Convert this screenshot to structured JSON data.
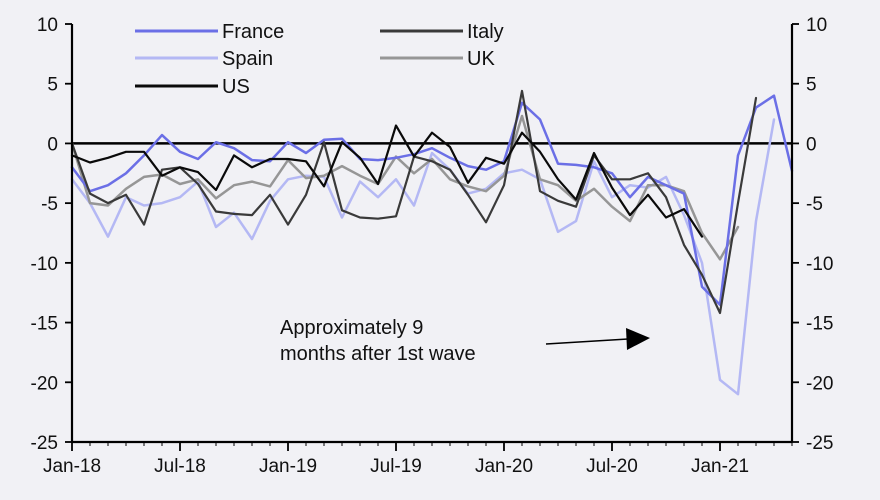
{
  "chart_data": {
    "type": "line",
    "title": "",
    "xlabel": "",
    "ylabel": "",
    "ylim": [
      -25,
      10
    ],
    "yticks": [
      10,
      5,
      0,
      -5,
      -10,
      -15,
      -20,
      -25
    ],
    "xlim": [
      "2018-01",
      "2021-05"
    ],
    "xticks": [
      "Jan-18",
      "Jul-18",
      "Jan-19",
      "Jul-19",
      "Jan-20",
      "Jul-20",
      "Jan-21"
    ],
    "x": [
      "2018-01",
      "2018-02",
      "2018-03",
      "2018-04",
      "2018-05",
      "2018-06",
      "2018-07",
      "2018-08",
      "2018-09",
      "2018-10",
      "2018-11",
      "2018-12",
      "2019-01",
      "2019-02",
      "2019-03",
      "2019-04",
      "2019-05",
      "2019-06",
      "2019-07",
      "2019-08",
      "2019-09",
      "2019-10",
      "2019-11",
      "2019-12",
      "2020-01",
      "2020-02",
      "2020-03",
      "2020-04",
      "2020-05",
      "2020-06",
      "2020-07",
      "2020-08",
      "2020-09",
      "2020-10",
      "2020-11",
      "2020-12",
      "2021-01",
      "2021-02",
      "2021-03",
      "2021-04",
      "2021-05"
    ],
    "reference_line": 0,
    "legend_position": "top",
    "series": [
      {
        "name": "France",
        "color": "#6b6fe6",
        "width": 2.5,
        "values": [
          -2,
          -4,
          -3.5,
          -2.5,
          -1,
          0.7,
          -0.7,
          -1.3,
          0.1,
          -0.4,
          -1.4,
          -1.5,
          0.1,
          -0.8,
          0.3,
          0.4,
          -1.3,
          -1.4,
          -1.2,
          -0.9,
          -0.4,
          -1.2,
          -1.9,
          -2.2,
          -1.5,
          3.4,
          2,
          -1.7,
          -1.8,
          -2,
          -2.5,
          -4.5,
          -2.8,
          -3.5,
          -4.2,
          -12,
          -13.5,
          -1,
          3,
          4,
          -2.3
        ]
      },
      {
        "name": "Italy",
        "color": "#3a3a3a",
        "width": 2.2,
        "values": [
          0,
          -4.2,
          -5,
          -4.3,
          -6.8,
          -2.2,
          -2,
          -3.4,
          -5.7,
          -5.9,
          -6,
          -4.3,
          -6.8,
          -4.3,
          0.1,
          -5.6,
          -6.2,
          -6.3,
          -6.1,
          -1.1,
          -1.5,
          -2.2,
          -4.3,
          -6.6,
          -3.5,
          4.4,
          -4,
          -4.8,
          -5.3,
          -1,
          -3,
          -3,
          -2.5,
          -4.5,
          -8.5,
          -11,
          -14.2,
          -5,
          3.8,
          null,
          null
        ]
      },
      {
        "name": "Spain",
        "color": "#b4b8f4",
        "width": 2.5,
        "values": [
          -3,
          -5,
          -7.8,
          -4.5,
          -5.2,
          -5,
          -4.5,
          -3.2,
          -7,
          -5.8,
          -8,
          -4.8,
          -3,
          -2.7,
          -2.8,
          -6.2,
          -3.2,
          -4.5,
          -3,
          -5.2,
          -0.8,
          -2.2,
          -4.2,
          -3.8,
          -2.5,
          -2.2,
          -3,
          -7.4,
          -6.5,
          -1.5,
          -4.5,
          -3.5,
          -3.7,
          -2.8,
          -6,
          -10,
          -19.8,
          -21,
          -6.5,
          2,
          null
        ]
      },
      {
        "name": "UK",
        "color": "#969696",
        "width": 2.5,
        "values": [
          0,
          -5,
          -5.2,
          -3.8,
          -2.8,
          -2.6,
          -3.4,
          -3,
          -4.6,
          -3.5,
          -3.2,
          -3.6,
          -1.4,
          -2.9,
          -2.7,
          -1.9,
          -2.7,
          -3.4,
          -1.1,
          -2.5,
          -1.3,
          -3,
          -3.6,
          -4,
          -2.7,
          2.3,
          -3,
          -3.5,
          -4.8,
          -3.8,
          -5.3,
          -6.5,
          -3.5,
          -3.5,
          -4,
          -7.5,
          -9.7,
          -7,
          null,
          null,
          null
        ]
      },
      {
        "name": "US",
        "color": "#0a0a0a",
        "width": 2.2,
        "values": [
          -1,
          -1.6,
          -1.2,
          -0.7,
          -0.7,
          -2.7,
          -2,
          -2.4,
          -3.9,
          -1,
          -2,
          -1.3,
          -1.3,
          -1.5,
          -3.6,
          0.1,
          -1.2,
          -3.4,
          1.5,
          -1.1,
          0.9,
          -0.3,
          -3.3,
          -1.2,
          -1.7,
          0.9,
          -0.7,
          -3,
          -4.7,
          -0.8,
          -3.7,
          -6,
          -4.3,
          -6.2,
          -5.5,
          -7.8,
          null,
          null,
          null,
          null,
          null
        ]
      }
    ],
    "annotation": {
      "lines": [
        "Approximately 9",
        "months after 1st wave"
      ]
    }
  }
}
